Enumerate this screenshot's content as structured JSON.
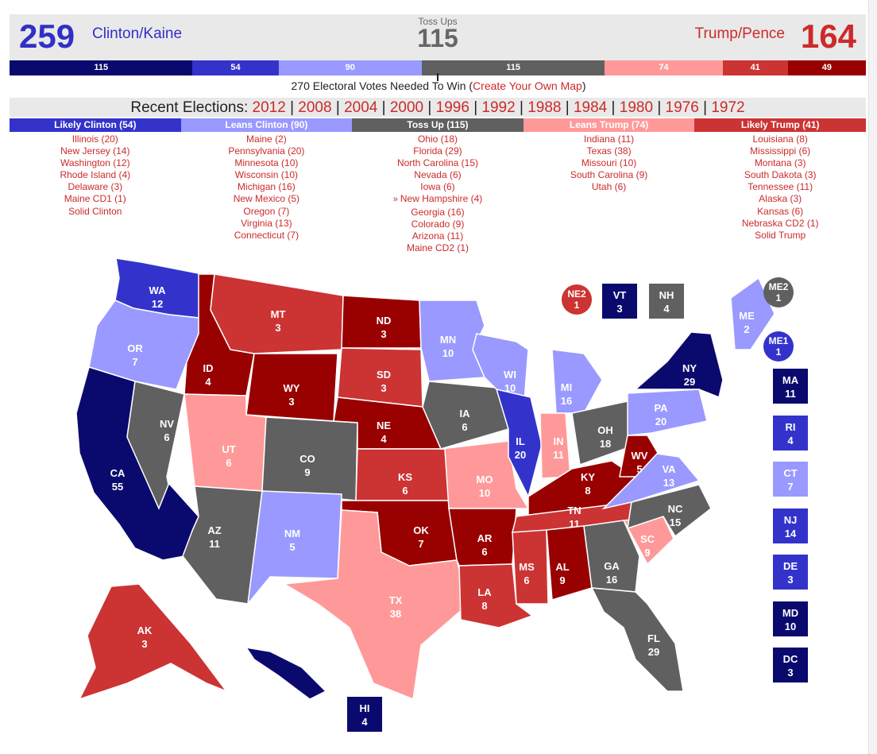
{
  "colors": {
    "safe_dem": "#0a0a6e",
    "likely_dem": "#3333cc",
    "lean_dem": "#9999ff",
    "tossup": "#606060",
    "lean_rep": "#ff9999",
    "likely_rep": "#cc3333",
    "safe_rep": "#990000"
  },
  "header": {
    "clinton_total": "259",
    "clinton_name": "Clinton/Kaine",
    "tossup_label": "Toss Ups",
    "tossup_total": "115",
    "trump_name": "Trump/Pence",
    "trump_total": "164"
  },
  "segments": [
    {
      "value": "115",
      "votes": 115,
      "color": "safe_dem"
    },
    {
      "value": "54",
      "votes": 54,
      "color": "likely_dem"
    },
    {
      "value": "90",
      "votes": 90,
      "color": "lean_dem"
    },
    {
      "value": "115",
      "votes": 115,
      "color": "tossup"
    },
    {
      "value": "74",
      "votes": 74,
      "color": "lean_rep"
    },
    {
      "value": "41",
      "votes": 41,
      "color": "likely_rep"
    },
    {
      "value": "49",
      "votes": 49,
      "color": "safe_rep"
    }
  ],
  "needed": {
    "text": "270 Electoral Votes Needed To Win (",
    "link": "Create Your Own Map",
    "close": ")"
  },
  "recent": {
    "label": "Recent Elections:",
    "years": [
      "2012",
      "2008",
      "2004",
      "2000",
      "1996",
      "1992",
      "1988",
      "1984",
      "1980",
      "1976",
      "1972"
    ]
  },
  "categories": [
    {
      "title": "Likely Clinton (54)",
      "color": "likely_dem",
      "items": [
        "Illinois (20)",
        "New Jersey (14)",
        "Washington (12)",
        "Rhode Island (4)",
        "Delaware (3)",
        "Maine CD1 (1)",
        "Solid Clinton"
      ]
    },
    {
      "title": "Leans Clinton (90)",
      "color": "lean_dem",
      "items": [
        "Maine (2)",
        "Pennsylvania (20)",
        "Minnesota (10)",
        "Wisconsin (10)",
        "Michigan (16)",
        "New Mexico (5)",
        "Oregon (7)",
        "Virginia (13)",
        "Connecticut (7)"
      ]
    },
    {
      "title": "Toss Up (115)",
      "color": "tossup",
      "items": [
        "Ohio (18)",
        "Florida (29)",
        "North Carolina (15)",
        "Nevada (6)",
        "Iowa (6)",
        "New Hampshire (4)",
        "Georgia (16)",
        "Colorado (9)",
        "Arizona (11)",
        "Maine CD2 (1)"
      ]
    },
    {
      "title": "Leans Trump (74)",
      "color": "lean_rep",
      "items": [
        "Indiana (11)",
        "Texas (38)",
        "Missouri (10)",
        "South Carolina (9)",
        "Utah (6)"
      ]
    },
    {
      "title": "Likely Trump (41)",
      "color": "likely_rep",
      "items": [
        "Louisiana (8)",
        "Mississippi (6)",
        "Montana (3)",
        "South Dakota (3)",
        "Tennessee (11)",
        "Alaska (3)",
        "Kansas (6)",
        "Nebraska CD2 (1)",
        "Solid Trump"
      ]
    }
  ],
  "arrow_glyph": "»",
  "states": {
    "WA": {
      "abbr": "WA",
      "ev": "12",
      "rating": "likely_dem"
    },
    "OR": {
      "abbr": "OR",
      "ev": "7",
      "rating": "lean_dem"
    },
    "CA": {
      "abbr": "CA",
      "ev": "55",
      "rating": "safe_dem"
    },
    "NV": {
      "abbr": "NV",
      "ev": "6",
      "rating": "tossup"
    },
    "ID": {
      "abbr": "ID",
      "ev": "4",
      "rating": "safe_rep"
    },
    "MT": {
      "abbr": "MT",
      "ev": "3",
      "rating": "likely_rep"
    },
    "WY": {
      "abbr": "WY",
      "ev": "3",
      "rating": "safe_rep"
    },
    "UT": {
      "abbr": "UT",
      "ev": "6",
      "rating": "lean_rep"
    },
    "AZ": {
      "abbr": "AZ",
      "ev": "11",
      "rating": "tossup"
    },
    "CO": {
      "abbr": "CO",
      "ev": "9",
      "rating": "tossup"
    },
    "NM": {
      "abbr": "NM",
      "ev": "5",
      "rating": "lean_dem"
    },
    "ND": {
      "abbr": "ND",
      "ev": "3",
      "rating": "safe_rep"
    },
    "SD": {
      "abbr": "SD",
      "ev": "3",
      "rating": "likely_rep"
    },
    "NE": {
      "abbr": "NE",
      "ev": "4",
      "rating": "safe_rep"
    },
    "KS": {
      "abbr": "KS",
      "ev": "6",
      "rating": "likely_rep"
    },
    "OK": {
      "abbr": "OK",
      "ev": "7",
      "rating": "safe_rep"
    },
    "TX": {
      "abbr": "TX",
      "ev": "38",
      "rating": "lean_rep"
    },
    "MN": {
      "abbr": "MN",
      "ev": "10",
      "rating": "lean_dem"
    },
    "IA": {
      "abbr": "IA",
      "ev": "6",
      "rating": "tossup"
    },
    "MO": {
      "abbr": "MO",
      "ev": "10",
      "rating": "lean_rep"
    },
    "AR": {
      "abbr": "AR",
      "ev": "6",
      "rating": "safe_rep"
    },
    "LA": {
      "abbr": "LA",
      "ev": "8",
      "rating": "likely_rep"
    },
    "WI": {
      "abbr": "WI",
      "ev": "10",
      "rating": "lean_dem"
    },
    "IL": {
      "abbr": "IL",
      "ev": "20",
      "rating": "likely_dem"
    },
    "MI": {
      "abbr": "MI",
      "ev": "16",
      "rating": "lean_dem"
    },
    "IN": {
      "abbr": "IN",
      "ev": "11",
      "rating": "lean_rep"
    },
    "OH": {
      "abbr": "OH",
      "ev": "18",
      "rating": "tossup"
    },
    "KY": {
      "abbr": "KY",
      "ev": "8",
      "rating": "safe_rep"
    },
    "TN": {
      "abbr": "TN",
      "ev": "11",
      "rating": "likely_rep"
    },
    "MS": {
      "abbr": "MS",
      "ev": "6",
      "rating": "likely_rep"
    },
    "AL": {
      "abbr": "AL",
      "ev": "9",
      "rating": "safe_rep"
    },
    "GA": {
      "abbr": "GA",
      "ev": "16",
      "rating": "tossup"
    },
    "FL": {
      "abbr": "FL",
      "ev": "29",
      "rating": "tossup"
    },
    "SC": {
      "abbr": "SC",
      "ev": "9",
      "rating": "lean_rep"
    },
    "NC": {
      "abbr": "NC",
      "ev": "15",
      "rating": "tossup"
    },
    "VA": {
      "abbr": "VA",
      "ev": "13",
      "rating": "lean_dem"
    },
    "WV": {
      "abbr": "WV",
      "ev": "5",
      "rating": "safe_rep"
    },
    "PA": {
      "abbr": "PA",
      "ev": "20",
      "rating": "lean_dem"
    },
    "NY": {
      "abbr": "NY",
      "ev": "29",
      "rating": "safe_dem"
    },
    "ME": {
      "abbr": "ME",
      "ev": "2",
      "rating": "lean_dem"
    },
    "AK": {
      "abbr": "AK",
      "ev": "3",
      "rating": "likely_rep"
    },
    "HI": {
      "abbr": "HI",
      "ev": "4",
      "rating": "safe_dem"
    }
  },
  "boxes": {
    "VT": {
      "abbr": "VT",
      "ev": "3",
      "rating": "safe_dem"
    },
    "NH": {
      "abbr": "NH",
      "ev": "4",
      "rating": "tossup"
    },
    "MA": {
      "abbr": "MA",
      "ev": "11",
      "rating": "safe_dem"
    },
    "RI": {
      "abbr": "RI",
      "ev": "4",
      "rating": "likely_dem"
    },
    "CT": {
      "abbr": "CT",
      "ev": "7",
      "rating": "lean_dem"
    },
    "NJ": {
      "abbr": "NJ",
      "ev": "14",
      "rating": "likely_dem"
    },
    "DE": {
      "abbr": "DE",
      "ev": "3",
      "rating": "likely_dem"
    },
    "MD": {
      "abbr": "MD",
      "ev": "10",
      "rating": "safe_dem"
    },
    "DC": {
      "abbr": "DC",
      "ev": "3",
      "rating": "safe_dem"
    },
    "HI": {
      "abbr": "HI",
      "ev": "4",
      "rating": "safe_dem"
    }
  },
  "circles": {
    "NE2": {
      "abbr": "NE2",
      "ev": "1",
      "rating": "likely_rep"
    },
    "ME2": {
      "abbr": "ME2",
      "ev": "1",
      "rating": "tossup"
    },
    "ME1": {
      "abbr": "ME1",
      "ev": "1",
      "rating": "likely_dem"
    }
  }
}
